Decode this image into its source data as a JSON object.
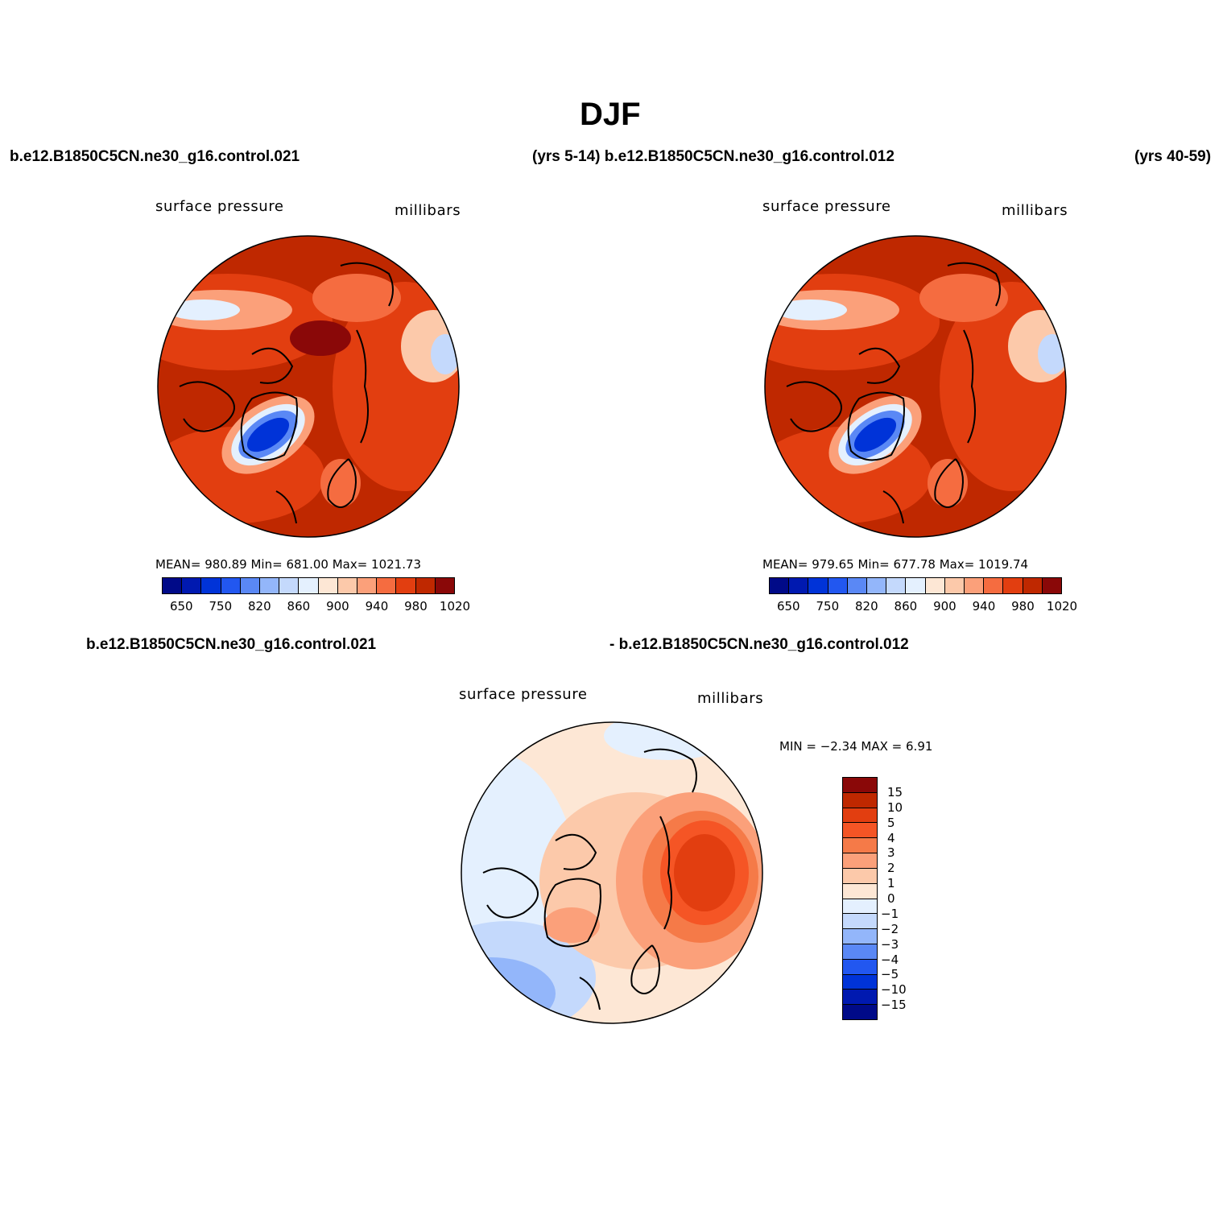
{
  "figure_title": "DJF",
  "top_left_case": "b.e12.B1850C5CN.ne30_g16.control.021",
  "top_mid_label": "(yrs 5-14) b.e12.B1850C5CN.ne30_g16.control.012",
  "top_right_years": "(yrs 40-59)",
  "panels": [
    {
      "variable": "surface pressure",
      "units": "millibars",
      "stats": "MEAN= 980.89   Min= 681.00   Max= 1021.73",
      "colorbar_ticks": [
        "650",
        "750",
        "820",
        "860",
        "900",
        "940",
        "980",
        "1020"
      ]
    },
    {
      "variable": "surface pressure",
      "units": "millibars",
      "stats": "MEAN= 979.65   Min= 677.78   Max= 1019.74",
      "colorbar_ticks": [
        "650",
        "750",
        "820",
        "860",
        "900",
        "940",
        "980",
        "1020"
      ]
    }
  ],
  "diff": {
    "case_left": "b.e12.B1850C5CN.ne30_g16.control.021",
    "case_right": "- b.e12.B1850C5CN.ne30_g16.control.012",
    "variable": "surface pressure",
    "units": "millibars",
    "stats": "MIN =   −2.34  MAX =     6.91",
    "colorbar_labels": [
      "15",
      "10",
      "5",
      "4",
      "3",
      "2",
      "1",
      "0",
      "−1",
      "−2",
      "−3",
      "−4",
      "−5",
      "−10",
      "−15"
    ]
  },
  "palette_abs": [
    "#000a88",
    "#0019b0",
    "#0033d8",
    "#2257f0",
    "#5a88f5",
    "#93b6fa",
    "#c4d9fc",
    "#e4f0fe",
    "#fde7d5",
    "#fcc9aa",
    "#fba07a",
    "#f56c40",
    "#e23e10",
    "#bf2800",
    "#8a0808"
  ],
  "palette_diff": [
    "#8a0808",
    "#bf2800",
    "#e23e10",
    "#f55525",
    "#f57a48",
    "#fba07a",
    "#fcc9aa",
    "#fde7d5",
    "#e4f0fe",
    "#c4d9fc",
    "#93b6fa",
    "#5a88f5",
    "#2257f0",
    "#0033d8",
    "#0019b0",
    "#000a88"
  ]
}
